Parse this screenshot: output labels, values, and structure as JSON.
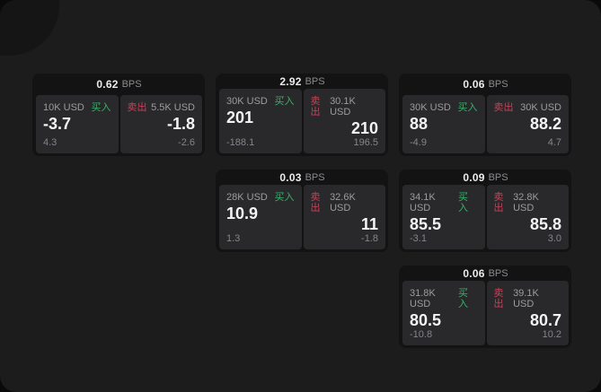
{
  "labels": {
    "bps_suffix": "BPS",
    "buy": "买入",
    "sell": "卖出"
  },
  "colors": {
    "buy_green": "#35b368",
    "sell_red": "#c94057",
    "window_bg": "#1c1c1d",
    "card_bg": "#131314",
    "pane_bg": "#29292b"
  },
  "cards": [
    {
      "row": 1,
      "col": 1,
      "bps": "0.62",
      "buy": {
        "notional": "10K USD",
        "price": "-3.7",
        "delta": "4.3"
      },
      "sell": {
        "notional": "5.5K USD",
        "price": "-1.8",
        "delta": "-2.6"
      }
    },
    {
      "row": 1,
      "col": 2,
      "bps": "2.92",
      "buy": {
        "notional": "30K USD",
        "price": "201",
        "delta": "-188.1"
      },
      "sell": {
        "notional": "30.1K USD",
        "price": "210",
        "delta": "196.5"
      }
    },
    {
      "row": 1,
      "col": 3,
      "bps": "0.06",
      "buy": {
        "notional": "30K USD",
        "price": "88",
        "delta": "-4.9"
      },
      "sell": {
        "notional": "30K USD",
        "price": "88.2",
        "delta": "4.7"
      }
    },
    {
      "row": 2,
      "col": 2,
      "bps": "0.03",
      "buy": {
        "notional": "28K USD",
        "price": "10.9",
        "delta": "1.3"
      },
      "sell": {
        "notional": "32.6K USD",
        "price": "11",
        "delta": "-1.8"
      }
    },
    {
      "row": 2,
      "col": 3,
      "bps": "0.09",
      "buy": {
        "notional": "34.1K USD",
        "price": "85.5",
        "delta": "-3.1"
      },
      "sell": {
        "notional": "32.8K USD",
        "price": "85.8",
        "delta": "3.0"
      }
    },
    {
      "row": 3,
      "col": 3,
      "bps": "0.06",
      "buy": {
        "notional": "31.8K USD",
        "price": "80.5",
        "delta": "-10.8"
      },
      "sell": {
        "notional": "39.1K USD",
        "price": "80.7",
        "delta": "10.2"
      }
    }
  ]
}
